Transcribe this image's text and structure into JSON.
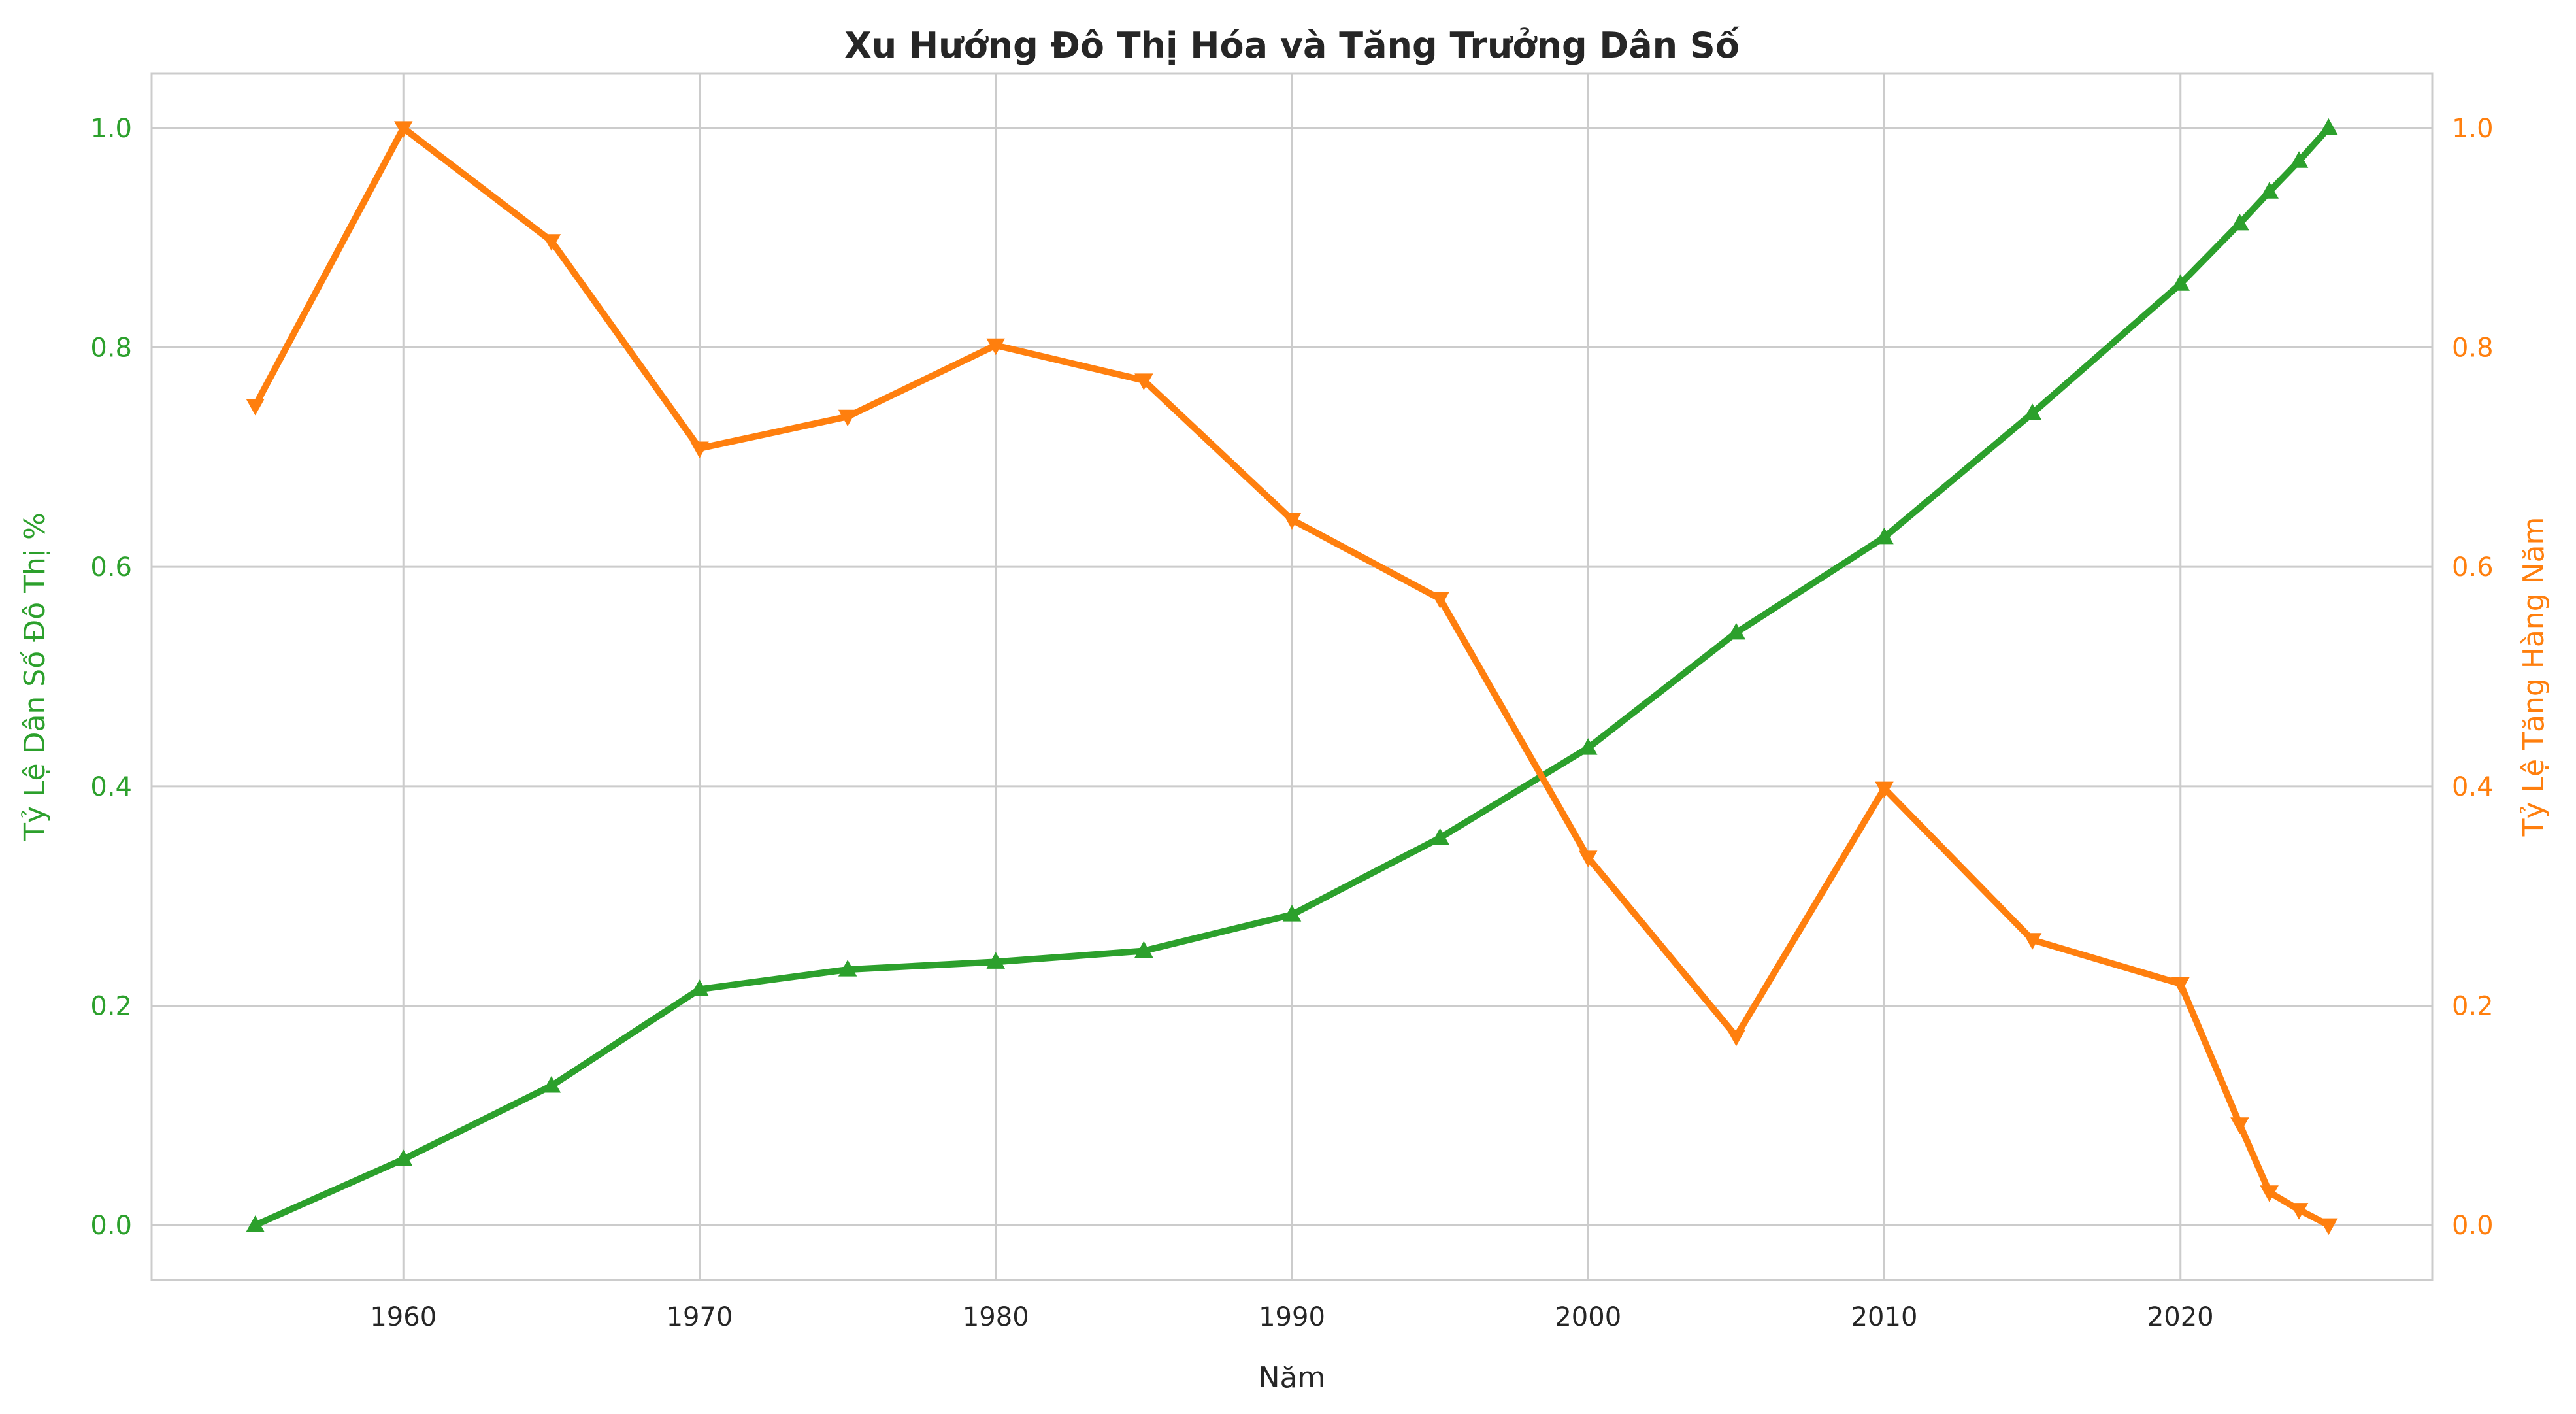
{
  "colors": {
    "urban": "#2ca02c",
    "growth": "#ff7f0e",
    "grid": "#cccccc",
    "frame": "#cccccc",
    "text": "#262626"
  },
  "chart_data": {
    "type": "line",
    "title": "Xu Hướng Đô Thị Hóa và Tăng Trưởng Dân Số",
    "xlabel": "Năm",
    "ylabel_left": "Tỷ Lệ Dân Số Đô Thị %",
    "ylabel_right": "Tỷ Lệ Tăng Hàng Năm",
    "xlim": [
      1951.5,
      2028.5
    ],
    "ylim_left": [
      -0.05,
      1.05
    ],
    "ylim_right": [
      -0.05,
      1.05
    ],
    "x_ticks": [
      1960,
      1970,
      1980,
      1990,
      2000,
      2010,
      2020
    ],
    "x_tick_labels": [
      "1960",
      "1970",
      "1980",
      "1990",
      "2000",
      "2010",
      "2020"
    ],
    "y_ticks": [
      0.0,
      0.2,
      0.4,
      0.6,
      0.8,
      1.0
    ],
    "y_tick_labels": [
      "0.0",
      "0.2",
      "0.4",
      "0.6",
      "0.8",
      "1.0"
    ],
    "grid": true,
    "series": [
      {
        "axis": "left",
        "marker": "triangle-up",
        "x": [
          1955,
          1960,
          1965,
          1970,
          1975,
          1980,
          1985,
          1990,
          1995,
          2000,
          2005,
          2010,
          2015,
          2020,
          2022,
          2023,
          2024,
          2025
        ],
        "y": [
          0.0,
          0.06,
          0.127,
          0.215,
          0.233,
          0.24,
          0.25,
          0.283,
          0.353,
          0.435,
          0.54,
          0.627,
          0.74,
          0.858,
          0.913,
          0.942,
          0.97,
          1.0
        ]
      },
      {
        "axis": "right",
        "marker": "triangle-down",
        "x": [
          1955,
          1960,
          1965,
          1970,
          1975,
          1980,
          1985,
          1990,
          1995,
          2000,
          2005,
          2010,
          2015,
          2020,
          2022,
          2023,
          2024,
          2025
        ],
        "y": [
          0.747,
          1.0,
          0.897,
          0.708,
          0.737,
          0.802,
          0.77,
          0.643,
          0.571,
          0.335,
          0.172,
          0.398,
          0.26,
          0.22,
          0.092,
          0.03,
          0.014,
          0.0
        ]
      }
    ]
  }
}
